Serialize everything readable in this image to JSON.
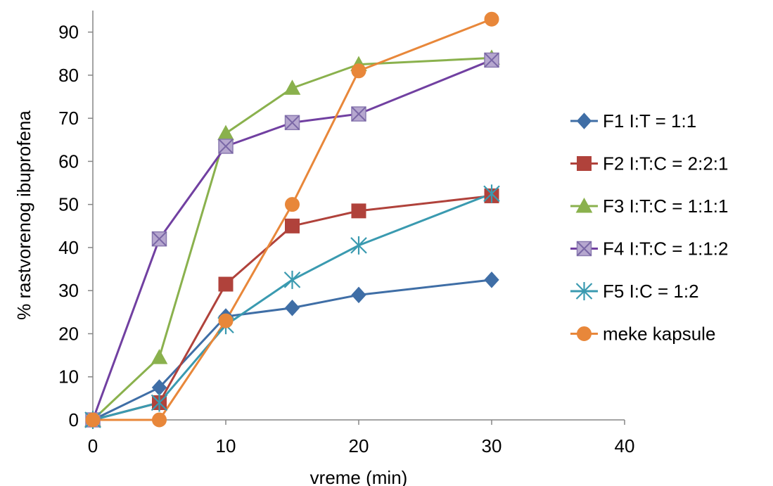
{
  "chart_data": {
    "type": "line",
    "xlabel": "vreme (min)",
    "ylabel": "% rastvorenog ibuprofena",
    "xlim": [
      0,
      40
    ],
    "ylim": [
      0,
      95
    ],
    "x_ticks": [
      "0",
      "10",
      "20",
      "30",
      "40"
    ],
    "y_ticks": [
      "0",
      "10",
      "20",
      "30",
      "40",
      "50",
      "60",
      "70",
      "80",
      "90"
    ],
    "grid": false,
    "legend_position": "right",
    "x": [
      0,
      5,
      10,
      15,
      20,
      30
    ],
    "series": [
      {
        "name": "F1  I:T = 1:1",
        "color": "#3f6ea6",
        "marker": "diamond",
        "values": [
          0,
          7.5,
          24,
          26,
          29,
          32.5
        ]
      },
      {
        "name": "F2  I:T:C = 2:2:1",
        "color": "#b0423b",
        "marker": "square",
        "values": [
          0,
          4,
          31.5,
          45,
          48.5,
          52
        ]
      },
      {
        "name": "F3 I:T:C = 1:1:1",
        "color": "#8ab14d",
        "marker": "triangle",
        "values": [
          0,
          14.5,
          66.5,
          77,
          82.5,
          84
        ]
      },
      {
        "name": "F4  I:T:C = 1:1:2",
        "color": "#7140a1",
        "marker": "boxx",
        "values": [
          0,
          42,
          63.5,
          69,
          71,
          83.5
        ]
      },
      {
        "name": "F5  I:C = 1:2",
        "color": "#3a9ab0",
        "marker": "asterisk",
        "values": [
          0,
          4,
          22,
          32.5,
          40.5,
          52.5
        ]
      },
      {
        "name": "meke kapsule",
        "color": "#e8873a",
        "marker": "circle",
        "values": [
          0,
          0,
          23,
          50,
          81,
          93
        ]
      }
    ]
  }
}
